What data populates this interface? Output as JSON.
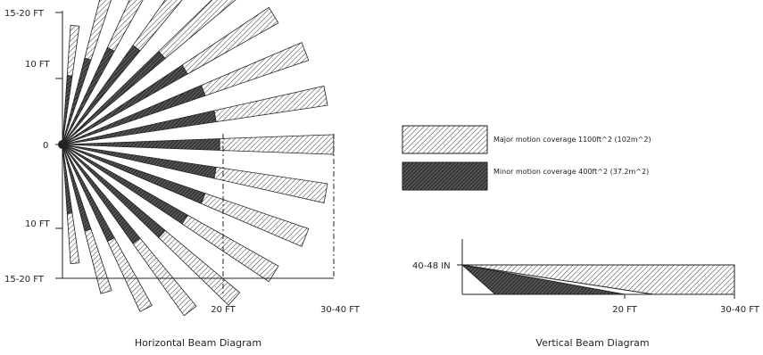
{
  "horizontal": {
    "caption": "Horizontal Beam Diagram",
    "y_labels": {
      "top": "15-20 FT",
      "upper": "10 FT",
      "center": "0",
      "lower": "10 FT",
      "bottom": "15-20 FT"
    },
    "x_labels": {
      "mid": "20 FT",
      "far": "30-40 FT"
    },
    "beam_count": 17
  },
  "vertical": {
    "caption": "Vertical Beam Diagram",
    "y_label": "40-48 IN",
    "x_labels": {
      "mid": "20 FT",
      "far": "30-40 FT"
    }
  },
  "legend": {
    "major": {
      "label": "Major motion coverage 1100ft^2 (102m^2)",
      "pattern": "light-hatch"
    },
    "minor": {
      "label": "Minor motion coverage 400ft^2 (37.2m^2)",
      "pattern": "dark-hatch"
    }
  },
  "colors": {
    "stroke": "#222222",
    "background": "#ffffff"
  }
}
